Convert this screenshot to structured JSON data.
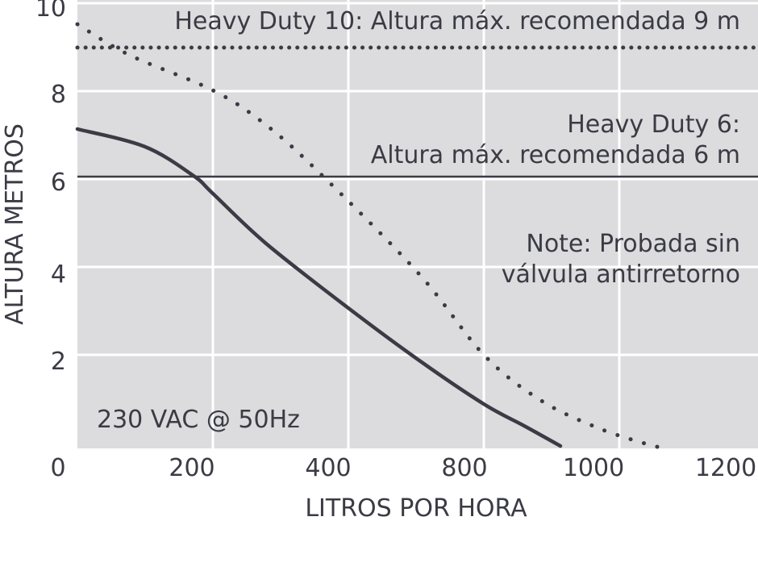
{
  "chart_data": {
    "type": "line",
    "xlabel": "LITROS POR HORA",
    "ylabel": "ALTURA METROS",
    "x_ticks": [
      "0",
      "200",
      "400",
      "800",
      "1000",
      "1200"
    ],
    "y_ticks": [
      "2",
      "4",
      "6",
      "8",
      "10"
    ],
    "ylim": [
      0,
      10
    ],
    "grid": true,
    "background_color": "#dcdcde",
    "grid_color": "#ffffff",
    "series": [
      {
        "style": "dotted",
        "color": "#3b3b45",
        "points": [
          [
            0,
            9.6
          ],
          [
            100,
            9.0
          ],
          [
            200,
            8.0
          ],
          [
            300,
            7.2
          ],
          [
            400,
            6.0
          ],
          [
            600,
            4.0
          ],
          [
            800,
            2.0
          ],
          [
            900,
            1.2
          ],
          [
            1000,
            0.6
          ],
          [
            1100,
            0.2
          ],
          [
            1150,
            0.0
          ]
        ]
      },
      {
        "style": "solid",
        "color": "#3b3b45",
        "points": [
          [
            0,
            7.1
          ],
          [
            100,
            6.8
          ],
          [
            180,
            6.1
          ],
          [
            200,
            6.0
          ],
          [
            300,
            4.6
          ],
          [
            400,
            3.4
          ],
          [
            500,
            2.0
          ],
          [
            600,
            1.1
          ],
          [
            700,
            0.6
          ],
          [
            800,
            0.3
          ],
          [
            900,
            0.1
          ],
          [
            1000,
            0.0
          ]
        ]
      }
    ],
    "reference_lines": [
      {
        "y": 9,
        "style": "dotted",
        "color": "#3b3b45"
      },
      {
        "y": 6,
        "style": "solid",
        "color": "#3b3b45"
      }
    ],
    "annotations": {
      "hd10": "Heavy Duty 10: Altura máx. recomendada 9 m",
      "hd6_line1": "Heavy Duty 6:",
      "hd6_line2": "Altura máx. recomendada 6 m",
      "note_line1": "Note: Probada sin",
      "note_line2": "válvula antirretorno",
      "voltage": "230 VAC @ 50Hz"
    }
  }
}
